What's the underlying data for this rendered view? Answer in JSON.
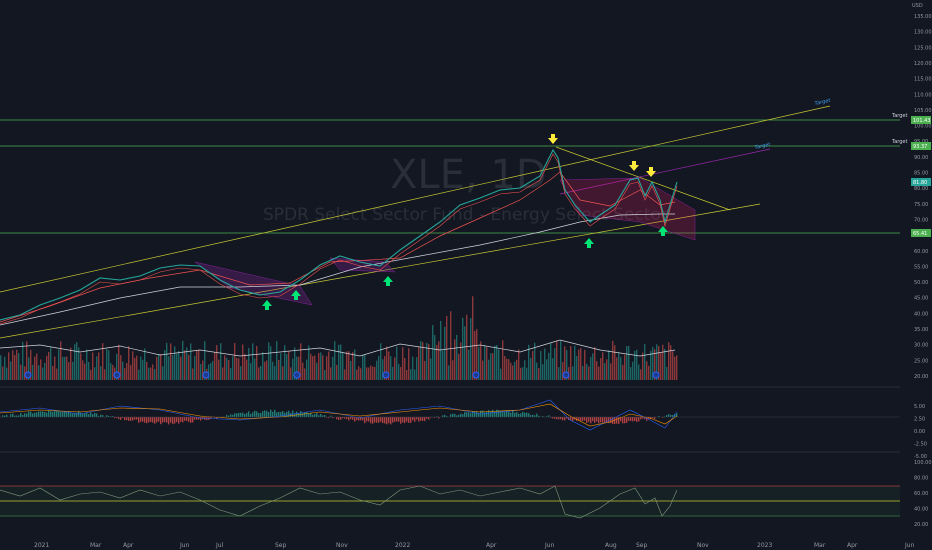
{
  "watermark": {
    "symbol": "XLE, 1D",
    "name": "SPDR Select Sector Fund - Energy Select Sector"
  },
  "currency": "USD",
  "price_axis": {
    "ticks": [
      "135.00",
      "130.00",
      "125.00",
      "120.00",
      "115.00",
      "110.00",
      "105.00",
      "100.00",
      "95.00",
      "90.00",
      "85.00",
      "80.00",
      "75.00",
      "70.00",
      "65.00",
      "60.00",
      "55.00",
      "50.00",
      "45.00",
      "40.00",
      "35.00",
      "30.00",
      "25.00",
      "20.00"
    ]
  },
  "macd_axis": {
    "ticks": [
      "5.00",
      "2.50",
      "0.00",
      "-2.50",
      "-5.00"
    ]
  },
  "rsi_axis": {
    "ticks": [
      "100.00",
      "80.00",
      "60.00",
      "40.00",
      "20.00"
    ]
  },
  "time_axis": {
    "labels": [
      "2021",
      "Mar",
      "Apr",
      "Jun",
      "Jul",
      "Sep",
      "Nov",
      "2022",
      "Apr",
      "Jun",
      "Aug",
      "Sep",
      "Nov",
      "2023",
      "Mar",
      "Apr",
      "Jun"
    ]
  },
  "price_badges": {
    "upper_target": "101.43",
    "lower_target": "93.37",
    "current": "81.80",
    "support": "65.41"
  },
  "annotations": {
    "target_upper": "Target",
    "target_lower": "Target",
    "target_line_upper": "Target",
    "target_line_mid": "Target"
  },
  "colors": {
    "background": "#131722",
    "up": "#26a69a",
    "down": "#ef5350",
    "green_line": "#4caf50",
    "yellow_line": "#c8c832",
    "purple_line": "#9c27b0",
    "arrow_up": "#00e676",
    "arrow_down": "#ffeb3b",
    "badge_green": "#4caf50"
  },
  "chart_data": {
    "type": "line",
    "title": "XLE, 1D",
    "subtitle": "SPDR Select Sector Fund - Energy Select Sector",
    "x": [
      "2021-01",
      "2021-03",
      "2021-04",
      "2021-06",
      "2021-07",
      "2021-09",
      "2021-11",
      "2022-01",
      "2022-04",
      "2022-06",
      "2022-08",
      "2022-09",
      "2022-10"
    ],
    "series": [
      {
        "name": "",
        "values": [
          40,
          45,
          50,
          54,
          52,
          47,
          55,
          60,
          78,
          92,
          72,
          84,
          81.8
        ]
      }
    ],
    "horizontal_levels": [
      101.43,
      93.37,
      65.41
    ],
    "ylim": [
      20,
      135
    ],
    "grid": true
  }
}
